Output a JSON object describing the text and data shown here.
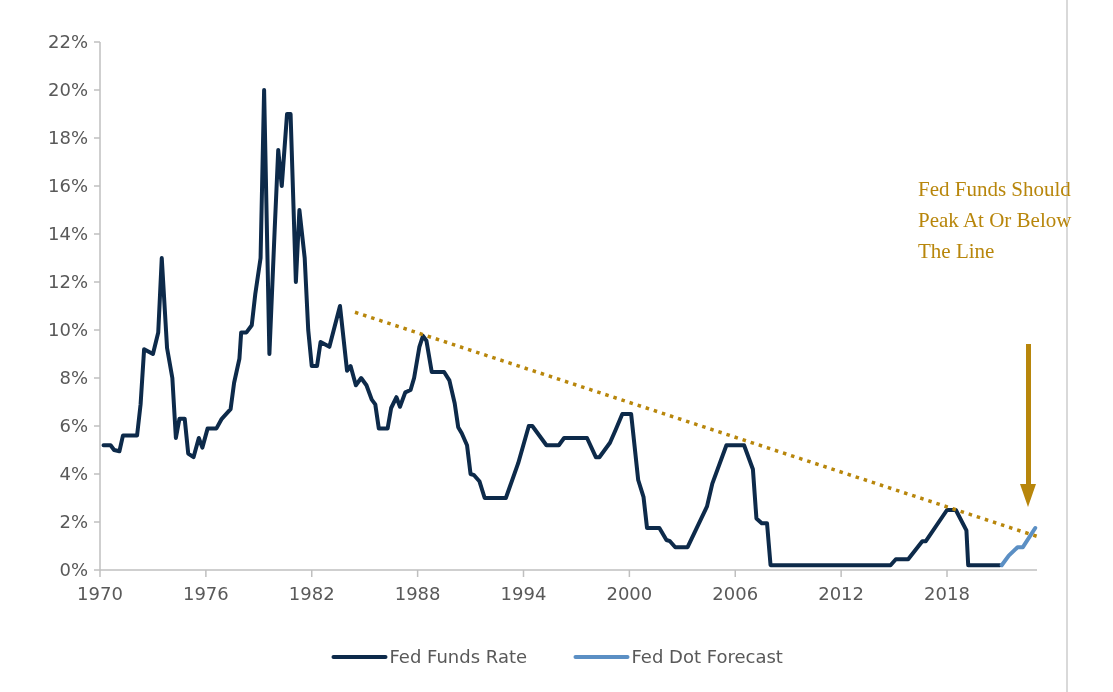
{
  "chart_data": {
    "type": "line",
    "xlim": [
      1970,
      2023.1
    ],
    "ylim": [
      0,
      22
    ],
    "xticks": [
      1970,
      1976,
      1982,
      1988,
      1994,
      2000,
      2006,
      2012,
      2018
    ],
    "yticks": [
      {
        "value": 0,
        "label": "0%"
      },
      {
        "value": 2,
        "label": "2%"
      },
      {
        "value": 4,
        "label": "4%"
      },
      {
        "value": 6,
        "label": "6%"
      },
      {
        "value": 8,
        "label": "8%"
      },
      {
        "value": 10,
        "label": "10%"
      },
      {
        "value": 12,
        "label": "12%"
      },
      {
        "value": 14,
        "label": "14%"
      },
      {
        "value": 16,
        "label": "16%"
      },
      {
        "value": 18,
        "label": "18%"
      },
      {
        "value": 20,
        "label": "20%"
      },
      {
        "value": 22,
        "label": "22%"
      }
    ],
    "grid": false,
    "legend": "bottom",
    "annotations": [
      "Fed Funds Should\nPeak At Or Below\nThe Line"
    ],
    "series": [
      {
        "name": "Fed Funds Rate",
        "color": "#0d2a4a",
        "x": [
          1970.2,
          1970.6,
          1970.8,
          1971.1,
          1971.3,
          1972.1,
          1972.3,
          1972.5,
          1973.0,
          1973.3,
          1973.5,
          1973.8,
          1974.1,
          1974.3,
          1974.5,
          1974.8,
          1975.0,
          1975.3,
          1975.6,
          1975.8,
          1976.1,
          1976.6,
          1976.9,
          1977.4,
          1977.6,
          1977.9,
          1978.0,
          1978.3,
          1978.6,
          1978.8,
          1979.1,
          1979.3,
          1979.6,
          1979.9,
          1980.1,
          1980.3,
          1980.6,
          1980.8,
          1981.1,
          1981.3,
          1981.6,
          1981.8,
          1982.0,
          1982.3,
          1982.5,
          1983.0,
          1983.6,
          1984.0,
          1984.2,
          1984.5,
          1984.8,
          1985.1,
          1985.4,
          1985.6,
          1985.8,
          1986.3,
          1986.5,
          1986.8,
          1987.0,
          1987.3,
          1987.6,
          1987.8,
          1988.1,
          1988.3,
          1988.5,
          1988.8,
          1989.5,
          1989.8,
          1990.1,
          1990.3,
          1990.5,
          1990.8,
          1991.0,
          1991.2,
          1991.5,
          1991.8,
          1993.0,
          1993.7,
          1994.3,
          1994.5,
          1995.3,
          1996.0,
          1996.3,
          1997.6,
          1998.1,
          1998.3,
          1998.9,
          1999.2,
          1999.6,
          2000.1,
          2000.5,
          2000.8,
          2001.0,
          2001.7,
          2002.1,
          2002.3,
          2002.6,
          2003.3,
          2004.4,
          2004.7,
          2005.5,
          2006.5,
          2007.0,
          2007.2,
          2007.5,
          2007.8,
          2008.0,
          2014.8,
          2015.1,
          2015.8,
          2016.6,
          2016.8,
          2018.0,
          2018.5,
          2019.1,
          2019.2,
          2021.0
        ],
        "values": [
          5.2,
          5.2,
          5.0,
          4.95,
          5.6,
          5.6,
          6.9,
          9.2,
          9.0,
          9.9,
          13.0,
          9.25,
          8.0,
          5.5,
          6.3,
          6.3,
          4.85,
          4.7,
          5.5,
          5.1,
          5.9,
          5.9,
          6.3,
          6.7,
          7.8,
          8.8,
          9.9,
          9.9,
          10.2,
          11.5,
          13.0,
          20.0,
          9.0,
          14.2,
          17.5,
          16.0,
          19.0,
          19.0,
          12.0,
          15.0,
          13.0,
          10.0,
          8.5,
          8.5,
          9.5,
          9.3,
          11.0,
          8.3,
          8.5,
          7.7,
          8.0,
          7.7,
          7.1,
          6.9,
          5.9,
          5.9,
          6.75,
          7.2,
          6.8,
          7.4,
          7.5,
          8.0,
          9.3,
          9.75,
          9.55,
          8.25,
          8.25,
          7.9,
          6.95,
          5.95,
          5.7,
          5.2,
          4.0,
          3.95,
          3.7,
          3.0,
          3.0,
          4.45,
          6.0,
          6.0,
          5.2,
          5.2,
          5.5,
          5.5,
          4.7,
          4.7,
          5.3,
          5.8,
          6.5,
          6.5,
          3.75,
          3.05,
          1.75,
          1.75,
          1.25,
          1.2,
          0.95,
          0.95,
          2.65,
          3.6,
          5.2,
          5.2,
          4.2,
          2.15,
          1.95,
          1.95,
          0.2,
          0.2,
          0.45,
          0.45,
          1.2,
          1.2,
          2.5,
          2.5,
          1.65,
          0.2,
          0.2
        ]
      },
      {
        "name": "Fed Dot Forecast",
        "color": "#5b8fc4",
        "x": [
          2021.1,
          2021.5,
          2022.0,
          2022.3,
          2023.0
        ],
        "values": [
          0.2,
          0.6,
          0.95,
          0.95,
          1.75
        ]
      },
      {
        "type": "line",
        "color": "#b8860b",
        "line_style": "dotted",
        "x": [
          1984.45,
          2023.1
        ],
        "values": [
          10.74,
          1.4
        ]
      }
    ]
  }
}
